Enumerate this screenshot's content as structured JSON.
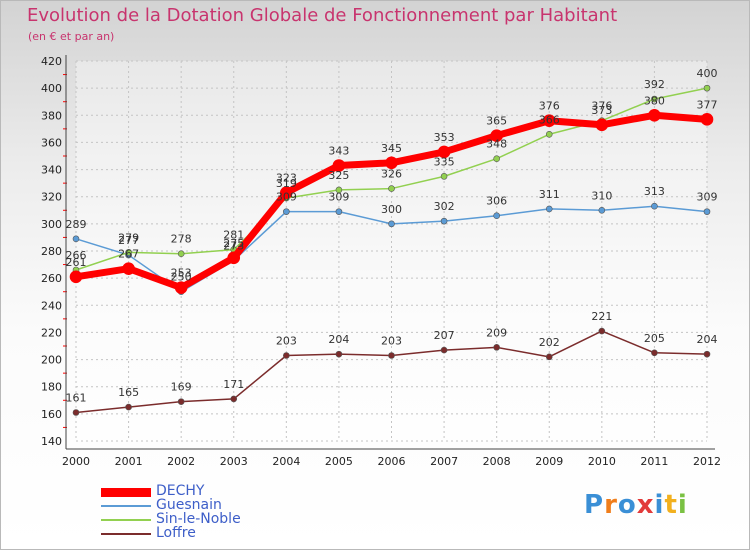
{
  "title": "Evolution de la Dotation Globale de Fonctionnement par Habitant",
  "subtitle": "(en € et par an)",
  "logo": "Proxiti",
  "chart_data": {
    "type": "line",
    "title": "Evolution de la Dotation Globale de Fonctionnement par Habitant",
    "subtitle": "(en € et par an)",
    "xlabel": "",
    "ylabel": "",
    "ylim": [
      140,
      420
    ],
    "yticks": [
      140,
      160,
      180,
      200,
      220,
      240,
      260,
      280,
      300,
      320,
      340,
      360,
      380,
      400,
      420
    ],
    "x": [
      "2000",
      "2001",
      "2002",
      "2003",
      "2004",
      "2005",
      "2006",
      "2007",
      "2008",
      "2009",
      "2010",
      "2011",
      "2012"
    ],
    "grid": true,
    "legend": "bottom-left",
    "series": [
      {
        "name": "DECHY",
        "color": "#ff0000",
        "values": [
          261,
          267,
          253,
          275,
          323,
          343,
          345,
          353,
          365,
          376,
          373,
          380,
          377
        ]
      },
      {
        "name": "Guesnain",
        "color": "#5b9bd5",
        "values": [
          289,
          277,
          250,
          273,
          309,
          309,
          300,
          302,
          306,
          311,
          310,
          313,
          309
        ]
      },
      {
        "name": "Sin-le-Noble",
        "color": "#92d050",
        "values": [
          266,
          279,
          278,
          281,
          319,
          325,
          326,
          335,
          348,
          366,
          376,
          392,
          400
        ]
      },
      {
        "name": "Loffre",
        "color": "#7b2c2c",
        "values": [
          161,
          165,
          169,
          171,
          203,
          204,
          203,
          207,
          209,
          202,
          221,
          205,
          204
        ]
      }
    ]
  }
}
